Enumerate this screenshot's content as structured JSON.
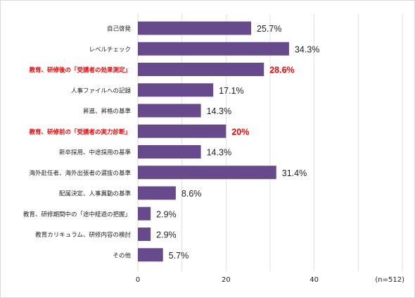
{
  "chart_data": {
    "type": "bar",
    "orientation": "horizontal",
    "categories": [
      "自己啓発",
      "レベルチェック",
      "教育、研修後の「受講者の効果測定」",
      "人事ファイルへの記録",
      "昇進、昇格の基準",
      "教育、研修前の「受講者の実力診断」",
      "新卒採用、中途採用の基準",
      "海外赴任者、海外出張者の選抜の基準",
      "配属決定、人事異動の基準",
      "教育、研修期間中の「途中経過の把握」",
      "教育カリキュラム、研修内容の検討",
      "その他"
    ],
    "values": [
      25.7,
      34.3,
      28.6,
      17.1,
      14.3,
      20,
      14.3,
      31.4,
      8.6,
      2.9,
      2.9,
      5.7
    ],
    "value_labels": [
      "25.7%",
      "34.3%",
      "28.6%",
      "17.1%",
      "14.3%",
      "20%",
      "14.3%",
      "31.4%",
      "8.6%",
      "2.9%",
      "2.9%",
      "5.7%"
    ],
    "highlighted": [
      false,
      false,
      true,
      false,
      false,
      true,
      false,
      false,
      false,
      false,
      false,
      false
    ],
    "xlim": [
      0,
      60
    ],
    "x_ticks": [
      "0",
      "20",
      "40"
    ],
    "grid": true,
    "note": "(n=512)",
    "colors": {
      "bar": "#674a8c",
      "highlight_text": "#ff0000",
      "text": "#222222",
      "grid": "#d9d9d9"
    }
  }
}
